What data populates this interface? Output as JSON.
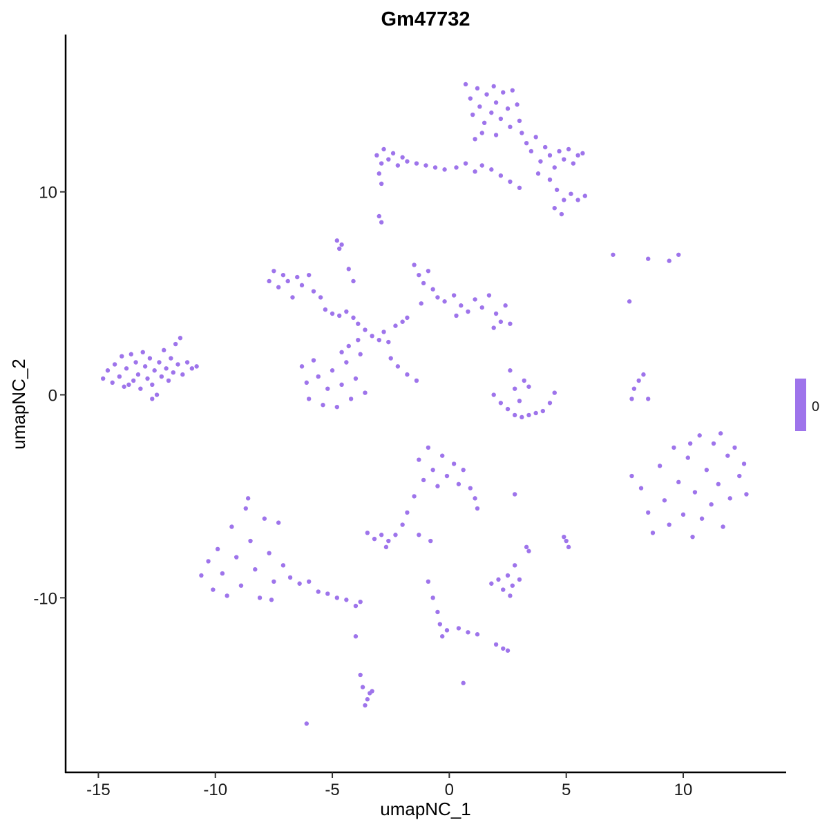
{
  "chart_data": {
    "type": "scatter",
    "title": "Gm47732",
    "xlabel": "umapNC_1",
    "ylabel": "umapNC_2",
    "xlim": [
      -16.4,
      14.4
    ],
    "ylim": [
      -18.6,
      17.75
    ],
    "xticks": [
      -15,
      -10,
      -5,
      0,
      5,
      10
    ],
    "yticks": [
      -10,
      0,
      10
    ],
    "xtick_labels": [
      "-15",
      "-10",
      "-5",
      "0",
      "5",
      "10"
    ],
    "ytick_labels": [
      "-10",
      "0",
      "10"
    ],
    "grid": false,
    "point_color": "#9e74eb",
    "legend": {
      "placement": "right",
      "label": "0",
      "color": "#9e74eb"
    },
    "points": [
      [
        -14.8,
        0.8
      ],
      [
        -14.6,
        1.2
      ],
      [
        -14.4,
        0.6
      ],
      [
        -14.3,
        1.5
      ],
      [
        -14.1,
        0.9
      ],
      [
        -14.0,
        1.9
      ],
      [
        -13.9,
        0.4
      ],
      [
        -13.8,
        1.3
      ],
      [
        -13.6,
        2.0
      ],
      [
        -13.5,
        0.7
      ],
      [
        -13.4,
        1.6
      ],
      [
        -13.3,
        1.0
      ],
      [
        -13.2,
        0.3
      ],
      [
        -13.1,
        2.1
      ],
      [
        -13.0,
        1.4
      ],
      [
        -12.9,
        0.8
      ],
      [
        -12.8,
        1.8
      ],
      [
        -12.7,
        0.5
      ],
      [
        -12.6,
        1.2
      ],
      [
        -12.5,
        0.0
      ],
      [
        -12.4,
        1.6
      ],
      [
        -12.3,
        0.9
      ],
      [
        -12.2,
        2.2
      ],
      [
        -12.1,
        1.3
      ],
      [
        -12.0,
        0.7
      ],
      [
        -11.9,
        1.8
      ],
      [
        -11.8,
        1.1
      ],
      [
        -11.7,
        2.5
      ],
      [
        -11.6,
        1.5
      ],
      [
        -11.5,
        2.8
      ],
      [
        -11.4,
        1.0
      ],
      [
        -11.2,
        1.6
      ],
      [
        -11.0,
        1.3
      ],
      [
        -10.8,
        1.4
      ],
      [
        -12.7,
        -0.2
      ],
      [
        -13.7,
        0.5
      ],
      [
        0.7,
        15.3
      ],
      [
        0.9,
        14.6
      ],
      [
        1.0,
        13.8
      ],
      [
        1.2,
        15.1
      ],
      [
        1.3,
        14.2
      ],
      [
        1.5,
        13.4
      ],
      [
        1.6,
        14.8
      ],
      [
        1.8,
        13.9
      ],
      [
        1.9,
        15.2
      ],
      [
        2.0,
        14.4
      ],
      [
        2.2,
        13.6
      ],
      [
        2.3,
        14.9
      ],
      [
        2.5,
        14.1
      ],
      [
        2.6,
        13.2
      ],
      [
        2.7,
        15.0
      ],
      [
        2.9,
        14.3
      ],
      [
        3.0,
        13.5
      ],
      [
        1.1,
        12.6
      ],
      [
        1.4,
        12.9
      ],
      [
        2.0,
        12.8
      ],
      [
        -3.1,
        11.8
      ],
      [
        -2.9,
        11.4
      ],
      [
        -2.8,
        12.1
      ],
      [
        -2.6,
        11.6
      ],
      [
        -2.4,
        11.9
      ],
      [
        -2.2,
        11.3
      ],
      [
        -2.0,
        11.7
      ],
      [
        -1.8,
        11.5
      ],
      [
        -1.4,
        11.4
      ],
      [
        -1.0,
        11.3
      ],
      [
        -0.6,
        11.2
      ],
      [
        -0.2,
        11.1
      ],
      [
        0.3,
        11.2
      ],
      [
        0.7,
        11.4
      ],
      [
        1.1,
        11.0
      ],
      [
        1.4,
        11.3
      ],
      [
        1.8,
        11.1
      ],
      [
        2.2,
        10.8
      ],
      [
        -3.0,
        10.9
      ],
      [
        -2.9,
        10.4
      ],
      [
        3.1,
        12.9
      ],
      [
        3.3,
        12.4
      ],
      [
        3.5,
        12.0
      ],
      [
        3.7,
        12.7
      ],
      [
        3.9,
        11.5
      ],
      [
        4.1,
        12.2
      ],
      [
        4.3,
        11.8
      ],
      [
        4.5,
        11.2
      ],
      [
        4.7,
        12.0
      ],
      [
        4.9,
        11.6
      ],
      [
        5.1,
        12.1
      ],
      [
        5.3,
        11.4
      ],
      [
        5.5,
        11.8
      ],
      [
        5.7,
        11.9
      ],
      [
        4.3,
        10.6
      ],
      [
        4.6,
        10.1
      ],
      [
        4.9,
        9.6
      ],
      [
        5.2,
        9.9
      ],
      [
        5.5,
        9.6
      ],
      [
        5.8,
        9.8
      ],
      [
        4.5,
        9.2
      ],
      [
        4.8,
        8.9
      ],
      [
        3.0,
        10.2
      ],
      [
        2.6,
        10.5
      ],
      [
        3.8,
        10.9
      ],
      [
        -3.0,
        8.8
      ],
      [
        -2.9,
        8.5
      ],
      [
        -4.8,
        7.6
      ],
      [
        -4.6,
        7.4
      ],
      [
        -4.7,
        7.2
      ],
      [
        -4.3,
        6.2
      ],
      [
        -4.1,
        5.6
      ],
      [
        -7.7,
        5.6
      ],
      [
        -7.5,
        6.1
      ],
      [
        -7.3,
        5.3
      ],
      [
        -7.1,
        5.9
      ],
      [
        -6.9,
        5.6
      ],
      [
        -6.7,
        4.8
      ],
      [
        -6.5,
        5.8
      ],
      [
        -6.3,
        5.4
      ],
      [
        -6.0,
        5.9
      ],
      [
        -5.8,
        5.1
      ],
      [
        -5.5,
        4.8
      ],
      [
        -5.3,
        4.2
      ],
      [
        -5.0,
        4.0
      ],
      [
        -4.7,
        3.9
      ],
      [
        -4.4,
        4.1
      ],
      [
        -4.1,
        3.8
      ],
      [
        -3.9,
        3.5
      ],
      [
        -3.6,
        3.2
      ],
      [
        -3.3,
        2.9
      ],
      [
        -3.0,
        2.7
      ],
      [
        -2.8,
        3.1
      ],
      [
        -2.6,
        2.6
      ],
      [
        -2.3,
        3.4
      ],
      [
        -2.0,
        3.6
      ],
      [
        -1.8,
        3.8
      ],
      [
        -6.3,
        1.4
      ],
      [
        -6.1,
        0.6
      ],
      [
        -6.0,
        -0.2
      ],
      [
        -5.8,
        1.7
      ],
      [
        -5.6,
        0.9
      ],
      [
        -5.4,
        -0.5
      ],
      [
        -5.2,
        0.3
      ],
      [
        -5.0,
        1.2
      ],
      [
        -4.8,
        -0.6
      ],
      [
        -4.6,
        0.5
      ],
      [
        -4.4,
        1.6
      ],
      [
        -4.2,
        -0.2
      ],
      [
        -4.0,
        0.8
      ],
      [
        -3.8,
        2.0
      ],
      [
        -3.6,
        0.1
      ],
      [
        -4.3,
        2.4
      ],
      [
        -3.9,
        2.7
      ],
      [
        -4.6,
        2.1
      ],
      [
        -1.5,
        6.4
      ],
      [
        -1.3,
        5.9
      ],
      [
        -1.1,
        5.5
      ],
      [
        -0.9,
        6.1
      ],
      [
        -0.7,
        5.2
      ],
      [
        -0.5,
        4.8
      ],
      [
        -1.2,
        4.5
      ],
      [
        -0.2,
        4.6
      ],
      [
        0.2,
        4.9
      ],
      [
        0.5,
        4.4
      ],
      [
        0.8,
        4.1
      ],
      [
        1.1,
        4.7
      ],
      [
        1.4,
        4.3
      ],
      [
        1.7,
        4.9
      ],
      [
        2.0,
        4.0
      ],
      [
        2.2,
        3.6
      ],
      [
        2.4,
        4.4
      ],
      [
        2.6,
        3.5
      ],
      [
        1.9,
        3.3
      ],
      [
        0.3,
        3.9
      ],
      [
        -2.5,
        1.8
      ],
      [
        -2.2,
        1.4
      ],
      [
        -1.8,
        1.0
      ],
      [
        -1.4,
        0.7
      ],
      [
        1.9,
        0.0
      ],
      [
        2.2,
        -0.4
      ],
      [
        2.5,
        -0.7
      ],
      [
        2.8,
        -1.0
      ],
      [
        3.1,
        -1.1
      ],
      [
        3.4,
        -1.0
      ],
      [
        3.7,
        -0.9
      ],
      [
        4.0,
        -0.8
      ],
      [
        4.3,
        -0.4
      ],
      [
        2.6,
        1.2
      ],
      [
        2.8,
        0.3
      ],
      [
        3.2,
        0.7
      ],
      [
        3.4,
        0.4
      ],
      [
        3.0,
        -0.3
      ],
      [
        4.5,
        0.1
      ],
      [
        7.8,
        -0.2
      ],
      [
        7.9,
        0.3
      ],
      [
        8.1,
        0.7
      ],
      [
        8.3,
        1.0
      ],
      [
        8.5,
        -0.2
      ],
      [
        7.0,
        6.9
      ],
      [
        7.7,
        4.6
      ],
      [
        8.5,
        6.7
      ],
      [
        9.4,
        6.6
      ],
      [
        9.8,
        6.9
      ],
      [
        7.8,
        -4.0
      ],
      [
        8.2,
        -4.6
      ],
      [
        8.5,
        -5.8
      ],
      [
        8.7,
        -6.8
      ],
      [
        9.0,
        -3.5
      ],
      [
        9.2,
        -5.2
      ],
      [
        9.4,
        -6.4
      ],
      [
        9.6,
        -2.6
      ],
      [
        9.8,
        -4.3
      ],
      [
        10.0,
        -5.9
      ],
      [
        10.2,
        -3.1
      ],
      [
        10.4,
        -7.0
      ],
      [
        10.5,
        -4.8
      ],
      [
        10.7,
        -2.0
      ],
      [
        10.8,
        -6.1
      ],
      [
        11.0,
        -3.7
      ],
      [
        11.2,
        -5.4
      ],
      [
        11.3,
        -2.4
      ],
      [
        11.5,
        -4.4
      ],
      [
        11.7,
        -6.5
      ],
      [
        11.9,
        -3.0
      ],
      [
        12.0,
        -5.1
      ],
      [
        12.2,
        -2.6
      ],
      [
        12.4,
        -4.0
      ],
      [
        12.6,
        -3.4
      ],
      [
        12.7,
        -4.9
      ],
      [
        11.6,
        -1.9
      ],
      [
        10.3,
        -2.4
      ],
      [
        -10.6,
        -8.9
      ],
      [
        -10.3,
        -8.2
      ],
      [
        -10.1,
        -9.6
      ],
      [
        -9.9,
        -7.6
      ],
      [
        -9.7,
        -8.8
      ],
      [
        -9.5,
        -9.9
      ],
      [
        -9.3,
        -6.5
      ],
      [
        -9.1,
        -8.0
      ],
      [
        -8.9,
        -9.4
      ],
      [
        -8.7,
        -5.6
      ],
      [
        -8.5,
        -7.2
      ],
      [
        -8.3,
        -8.6
      ],
      [
        -8.1,
        -10.0
      ],
      [
        -7.9,
        -6.1
      ],
      [
        -7.7,
        -7.8
      ],
      [
        -7.5,
        -9.2
      ],
      [
        -7.3,
        -6.3
      ],
      [
        -7.1,
        -8.4
      ],
      [
        -7.6,
        -10.1
      ],
      [
        -8.6,
        -5.1
      ],
      [
        -6.8,
        -9.0
      ],
      [
        -6.4,
        -9.3
      ],
      [
        -6.0,
        -9.2
      ],
      [
        -5.6,
        -9.7
      ],
      [
        -5.2,
        -9.8
      ],
      [
        -4.8,
        -10.0
      ],
      [
        -4.4,
        -10.1
      ],
      [
        -4.0,
        -10.4
      ],
      [
        -3.8,
        -10.2
      ],
      [
        -1.3,
        -3.2
      ],
      [
        -1.1,
        -4.2
      ],
      [
        -0.9,
        -2.6
      ],
      [
        -0.7,
        -3.7
      ],
      [
        -0.5,
        -4.5
      ],
      [
        -0.3,
        -3.0
      ],
      [
        -0.1,
        -4.0
      ],
      [
        0.2,
        -3.4
      ],
      [
        0.4,
        -4.4
      ],
      [
        0.6,
        -3.7
      ],
      [
        0.9,
        -4.6
      ],
      [
        1.1,
        -5.1
      ],
      [
        1.2,
        -5.6
      ],
      [
        -1.5,
        -5.0
      ],
      [
        -1.8,
        -5.8
      ],
      [
        -2.0,
        -6.4
      ],
      [
        -3.5,
        -6.8
      ],
      [
        -3.2,
        -7.1
      ],
      [
        -2.9,
        -6.9
      ],
      [
        -2.6,
        -7.2
      ],
      [
        -2.3,
        -6.9
      ],
      [
        -2.7,
        -7.5
      ],
      [
        -1.3,
        -6.9
      ],
      [
        -0.8,
        -7.2
      ],
      [
        1.8,
        -9.3
      ],
      [
        2.1,
        -9.1
      ],
      [
        2.3,
        -9.6
      ],
      [
        2.5,
        -8.9
      ],
      [
        2.7,
        -9.4
      ],
      [
        2.8,
        -8.4
      ],
      [
        3.0,
        -9.1
      ],
      [
        2.6,
        -9.9
      ],
      [
        3.3,
        -7.5
      ],
      [
        3.4,
        -7.7
      ],
      [
        2.8,
        -4.9
      ],
      [
        5.0,
        -7.2
      ],
      [
        5.1,
        -7.5
      ],
      [
        4.9,
        -7.0
      ],
      [
        -0.9,
        -9.2
      ],
      [
        -0.7,
        -10.0
      ],
      [
        -0.5,
        -10.7
      ],
      [
        -0.4,
        -11.3
      ],
      [
        -0.3,
        -11.9
      ],
      [
        -0.1,
        -11.6
      ],
      [
        0.4,
        -11.5
      ],
      [
        0.8,
        -11.7
      ],
      [
        1.2,
        -11.8
      ],
      [
        2.0,
        -12.3
      ],
      [
        2.3,
        -12.5
      ],
      [
        2.5,
        -12.6
      ],
      [
        0.6,
        -14.2
      ],
      [
        -4.0,
        -11.9
      ],
      [
        -3.8,
        -13.8
      ],
      [
        -3.7,
        -14.4
      ],
      [
        -3.5,
        -15.0
      ],
      [
        -3.4,
        -14.7
      ],
      [
        -3.6,
        -15.3
      ],
      [
        -3.3,
        -14.6
      ],
      [
        -6.1,
        -16.2
      ]
    ]
  }
}
